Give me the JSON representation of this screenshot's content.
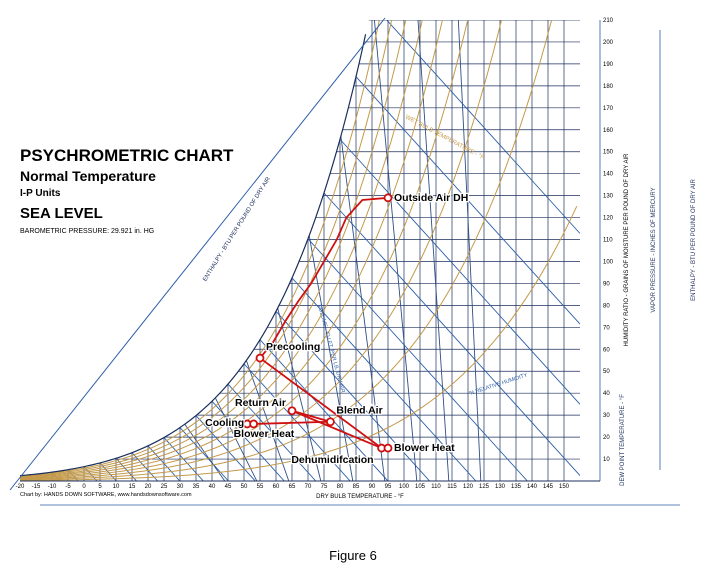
{
  "title": {
    "main": "PSYCHROMETRIC CHART",
    "subtitle": "Normal Temperature",
    "units": "I-P Units",
    "location": "SEA LEVEL",
    "pressure": "BAROMETRIC PRESSURE: 29.921 in. HG"
  },
  "credit": "Chart by: HANDS DOWN SOFTWARE, www.handsdownsoftware.com",
  "caption": "Figure 6",
  "chart_data": {
    "type": "scatter",
    "xlabel": "DRY BULB TEMPERATURE - °F",
    "y_right_label": "HUMIDITY RATIO - GRAINS OF MOISTURE PER POUND OF DRY AIR",
    "enthalpy_label": "ENTHALPY - BTU PER POUND OF DRY AIR",
    "enthalpy_right_label": "ENTHALPY - BTU PER POUND OF DRY AIR",
    "vapor_pressure_label": "VAPOR PRESSURE - INCHES OF MERCURY",
    "dew_point_label": "DEW POINT TEMPERATURE - °F",
    "wet_bulb_label": "WET BULB TEMPERATURE - °F",
    "rh_label": "% RELATIVE HUMIDITY",
    "volume_label": "VOLUME - CU.FT. PER LB. DRY AIR",
    "xlim": [
      -20,
      155
    ],
    "ylim": [
      0,
      210
    ],
    "x_ticks": [
      -20,
      -15,
      -10,
      -5,
      0,
      5,
      10,
      15,
      20,
      25,
      30,
      35,
      40,
      45,
      50,
      55,
      60,
      65,
      70,
      75,
      80,
      85,
      90,
      95,
      100,
      105,
      110,
      115,
      120,
      125,
      130,
      135,
      140,
      145,
      150
    ],
    "y_ticks": [
      10,
      20,
      30,
      40,
      50,
      60,
      70,
      80,
      90,
      100,
      110,
      120,
      130,
      140,
      150,
      160,
      170,
      180,
      190,
      200,
      210
    ],
    "points": [
      {
        "label": "Outside Air DH",
        "x": 95,
        "y": 129
      },
      {
        "label": "Precooling",
        "x": 55,
        "y": 56
      },
      {
        "label": "Return Air",
        "x": 65,
        "y": 32
      },
      {
        "label": "Blend Air",
        "x": 77,
        "y": 27
      },
      {
        "label": "Cooling",
        "x": 51,
        "y": 26
      },
      {
        "label": "Blower Heat",
        "x": 53,
        "y": 26
      },
      {
        "label": "Dehumidifcation",
        "x": 93,
        "y": 15
      },
      {
        "label": "Blower Heat",
        "x": 95,
        "y": 15
      }
    ],
    "process_line": [
      [
        95,
        129
      ],
      [
        87,
        128
      ],
      [
        82,
        120
      ],
      [
        79,
        110
      ],
      [
        75,
        100
      ],
      [
        71,
        90
      ],
      [
        67,
        82
      ],
      [
        63,
        73
      ],
      [
        59,
        63
      ],
      [
        55,
        56
      ]
    ],
    "segments": [
      [
        [
          55,
          56
        ],
        [
          93,
          15
        ]
      ],
      [
        [
          53,
          26
        ],
        [
          77,
          27
        ]
      ],
      [
        [
          65,
          32
        ],
        [
          77,
          27
        ]
      ],
      [
        [
          65,
          32
        ],
        [
          93,
          15
        ]
      ],
      [
        [
          93,
          15
        ],
        [
          95,
          15
        ]
      ]
    ]
  }
}
